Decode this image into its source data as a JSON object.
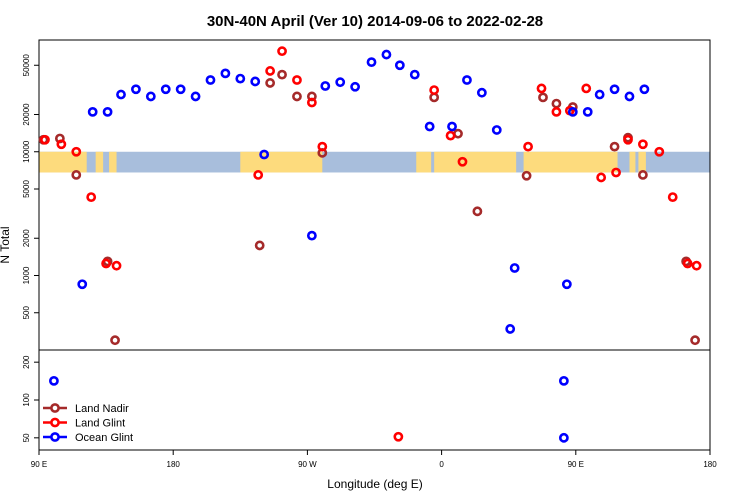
{
  "chart_data": {
    "type": "scatter",
    "title": "30N-40N April (Ver 10)   2014-09-06 to 2022-02-28",
    "xlabel": "Longitude (deg E)",
    "ylabel": "N Total",
    "x_ticks": [
      {
        "value": 90,
        "label": "90 E"
      },
      {
        "value": 180,
        "label": "180"
      },
      {
        "value": 270,
        "label": "90 W"
      },
      {
        "value": 360,
        "label": "0"
      },
      {
        "value": 450,
        "label": "90 E"
      },
      {
        "value": 540,
        "label": "180"
      }
    ],
    "xlim": [
      90,
      540
    ],
    "top_panel": {
      "scale": "log",
      "ylim": [
        250,
        80000
      ],
      "y_ticks": [
        "500",
        "1000",
        "2000",
        "5000",
        "10000",
        "20000",
        "50000"
      ],
      "map_band": {
        "latitude_range": "30N-40N",
        "ocean_color": "#a8bedc",
        "land_color": "#fddb7d"
      }
    },
    "bottom_panel": {
      "scale": "log",
      "ylim": [
        40,
        250
      ],
      "y_ticks": [
        "50",
        "100",
        "200"
      ]
    },
    "legend": {
      "position": "bottom-left",
      "entries": [
        {
          "name": "Land Nadir",
          "color": "#a52a2a"
        },
        {
          "name": "Land Glint",
          "color": "#ff0000"
        },
        {
          "name": "Ocean Glint",
          "color": "#0000ff"
        }
      ]
    },
    "series": [
      {
        "name": "Land Nadir",
        "color": "#a52a2a",
        "points": [
          {
            "x": 93,
            "y": 12500
          },
          {
            "x": 104,
            "y": 12800
          },
          {
            "x": 115,
            "y": 6500
          },
          {
            "x": 136,
            "y": 1300
          },
          {
            "x": 141,
            "y": 300
          },
          {
            "x": 238,
            "y": 1750
          },
          {
            "x": 245,
            "y": 36000
          },
          {
            "x": 253,
            "y": 42000
          },
          {
            "x": 263,
            "y": 28000
          },
          {
            "x": 273,
            "y": 28000
          },
          {
            "x": 280,
            "y": 9800
          },
          {
            "x": 355,
            "y": 27500
          },
          {
            "x": 371,
            "y": 14000
          },
          {
            "x": 384,
            "y": 3300
          },
          {
            "x": 417,
            "y": 6400
          },
          {
            "x": 428,
            "y": 27500
          },
          {
            "x": 437,
            "y": 24500
          },
          {
            "x": 448,
            "y": 23000
          },
          {
            "x": 476,
            "y": 11000
          },
          {
            "x": 485,
            "y": 13000
          },
          {
            "x": 495,
            "y": 6500
          },
          {
            "x": 524,
            "y": 1300
          },
          {
            "x": 530,
            "y": 300
          }
        ]
      },
      {
        "name": "Land Glint",
        "color": "#ff0000",
        "points": [
          {
            "x": 94,
            "y": 12500
          },
          {
            "x": 105,
            "y": 11500
          },
          {
            "x": 115,
            "y": 10000
          },
          {
            "x": 125,
            "y": 4300
          },
          {
            "x": 135,
            "y": 1250
          },
          {
            "x": 142,
            "y": 1200
          },
          {
            "x": 237,
            "y": 6500
          },
          {
            "x": 245,
            "y": 45000
          },
          {
            "x": 253,
            "y": 65000
          },
          {
            "x": 263,
            "y": 38000
          },
          {
            "x": 273,
            "y": 25000
          },
          {
            "x": 280,
            "y": 11000
          },
          {
            "x": 355,
            "y": 31500
          },
          {
            "x": 366,
            "y": 13500
          },
          {
            "x": 374,
            "y": 8300
          },
          {
            "x": 418,
            "y": 11000
          },
          {
            "x": 427,
            "y": 32500
          },
          {
            "x": 437,
            "y": 21000
          },
          {
            "x": 446,
            "y": 21500
          },
          {
            "x": 457,
            "y": 32500
          },
          {
            "x": 467,
            "y": 6200
          },
          {
            "x": 477,
            "y": 6800
          },
          {
            "x": 485,
            "y": 12500
          },
          {
            "x": 495,
            "y": 11500
          },
          {
            "x": 506,
            "y": 10000
          },
          {
            "x": 515,
            "y": 4300
          },
          {
            "x": 525,
            "y": 1250
          },
          {
            "x": 531,
            "y": 1200
          },
          {
            "x": 331,
            "y": 51
          }
        ]
      },
      {
        "name": "Ocean Glint",
        "color": "#0000ff",
        "points": [
          {
            "x": 100,
            "y": 142
          },
          {
            "x": 119,
            "y": 850
          },
          {
            "x": 126,
            "y": 21000
          },
          {
            "x": 136,
            "y": 21000
          },
          {
            "x": 145,
            "y": 29000
          },
          {
            "x": 155,
            "y": 32000
          },
          {
            "x": 165,
            "y": 28000
          },
          {
            "x": 175,
            "y": 32000
          },
          {
            "x": 185,
            "y": 32000
          },
          {
            "x": 195,
            "y": 28000
          },
          {
            "x": 205,
            "y": 38000
          },
          {
            "x": 215,
            "y": 43000
          },
          {
            "x": 225,
            "y": 39000
          },
          {
            "x": 235,
            "y": 37000
          },
          {
            "x": 241,
            "y": 9500
          },
          {
            "x": 273,
            "y": 2100
          },
          {
            "x": 282,
            "y": 34000
          },
          {
            "x": 292,
            "y": 36500
          },
          {
            "x": 302,
            "y": 33500
          },
          {
            "x": 313,
            "y": 53000
          },
          {
            "x": 323,
            "y": 61000
          },
          {
            "x": 332,
            "y": 50000
          },
          {
            "x": 342,
            "y": 42000
          },
          {
            "x": 352,
            "y": 16000
          },
          {
            "x": 367,
            "y": 16000
          },
          {
            "x": 377,
            "y": 38000
          },
          {
            "x": 387,
            "y": 30000
          },
          {
            "x": 397,
            "y": 15000
          },
          {
            "x": 406,
            "y": 370
          },
          {
            "x": 409,
            "y": 1150
          },
          {
            "x": 442,
            "y": 142
          },
          {
            "x": 442,
            "y": 50
          },
          {
            "x": 444,
            "y": 850
          },
          {
            "x": 448,
            "y": 21000
          },
          {
            "x": 458,
            "y": 21000
          },
          {
            "x": 466,
            "y": 29000
          },
          {
            "x": 476,
            "y": 32000
          },
          {
            "x": 486,
            "y": 28000
          },
          {
            "x": 496,
            "y": 32000
          }
        ]
      }
    ]
  }
}
